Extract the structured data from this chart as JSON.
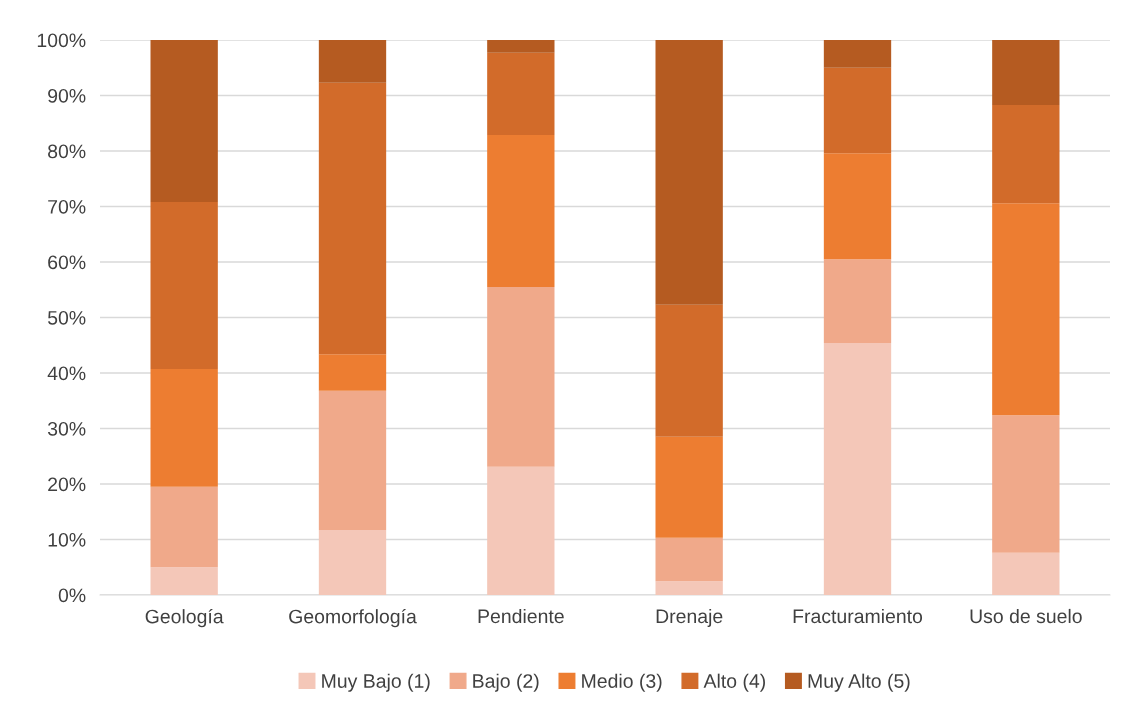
{
  "chart_data": {
    "type": "bar",
    "stacked": true,
    "categories": [
      "Geología",
      "Geomorfología",
      "Pendiente",
      "Drenaje",
      "Fracturamiento",
      "Uso de suelo"
    ],
    "series": [
      {
        "name": "Muy Bajo (1)",
        "color": "#f4c7b8",
        "values": [
          5.0,
          11.7,
          23.1,
          2.5,
          45.4,
          7.6
        ]
      },
      {
        "name": "Bajo (2)",
        "color": "#f0a98a",
        "values": [
          14.5,
          25.1,
          32.4,
          7.8,
          15.1,
          24.8
        ]
      },
      {
        "name": "Medio (3)",
        "color": "#ed7d31",
        "values": [
          21.2,
          6.6,
          27.4,
          18.2,
          19.1,
          38.2
        ]
      },
      {
        "name": "Alto (4)",
        "color": "#d26b2a",
        "values": [
          30.1,
          48.9,
          14.8,
          23.8,
          15.4,
          17.7
        ]
      },
      {
        "name": "Muy Alto (5)",
        "color": "#b55b21",
        "values": [
          29.2,
          7.7,
          2.3,
          47.7,
          5.0,
          11.7
        ]
      }
    ],
    "ylim": [
      0,
      100
    ],
    "yticks": [
      {
        "value": 0,
        "label": "0%"
      },
      {
        "value": 10,
        "label": "10%"
      },
      {
        "value": 20,
        "label": "20%"
      },
      {
        "value": 30,
        "label": "30%"
      },
      {
        "value": 40,
        "label": "40%"
      },
      {
        "value": 50,
        "label": "50%"
      },
      {
        "value": 60,
        "label": "60%"
      },
      {
        "value": 70,
        "label": "70%"
      },
      {
        "value": 80,
        "label": "80%"
      },
      {
        "value": 90,
        "label": "90%"
      },
      {
        "value": 100,
        "label": "100%"
      }
    ],
    "grid": "y",
    "legend": "bottom"
  }
}
